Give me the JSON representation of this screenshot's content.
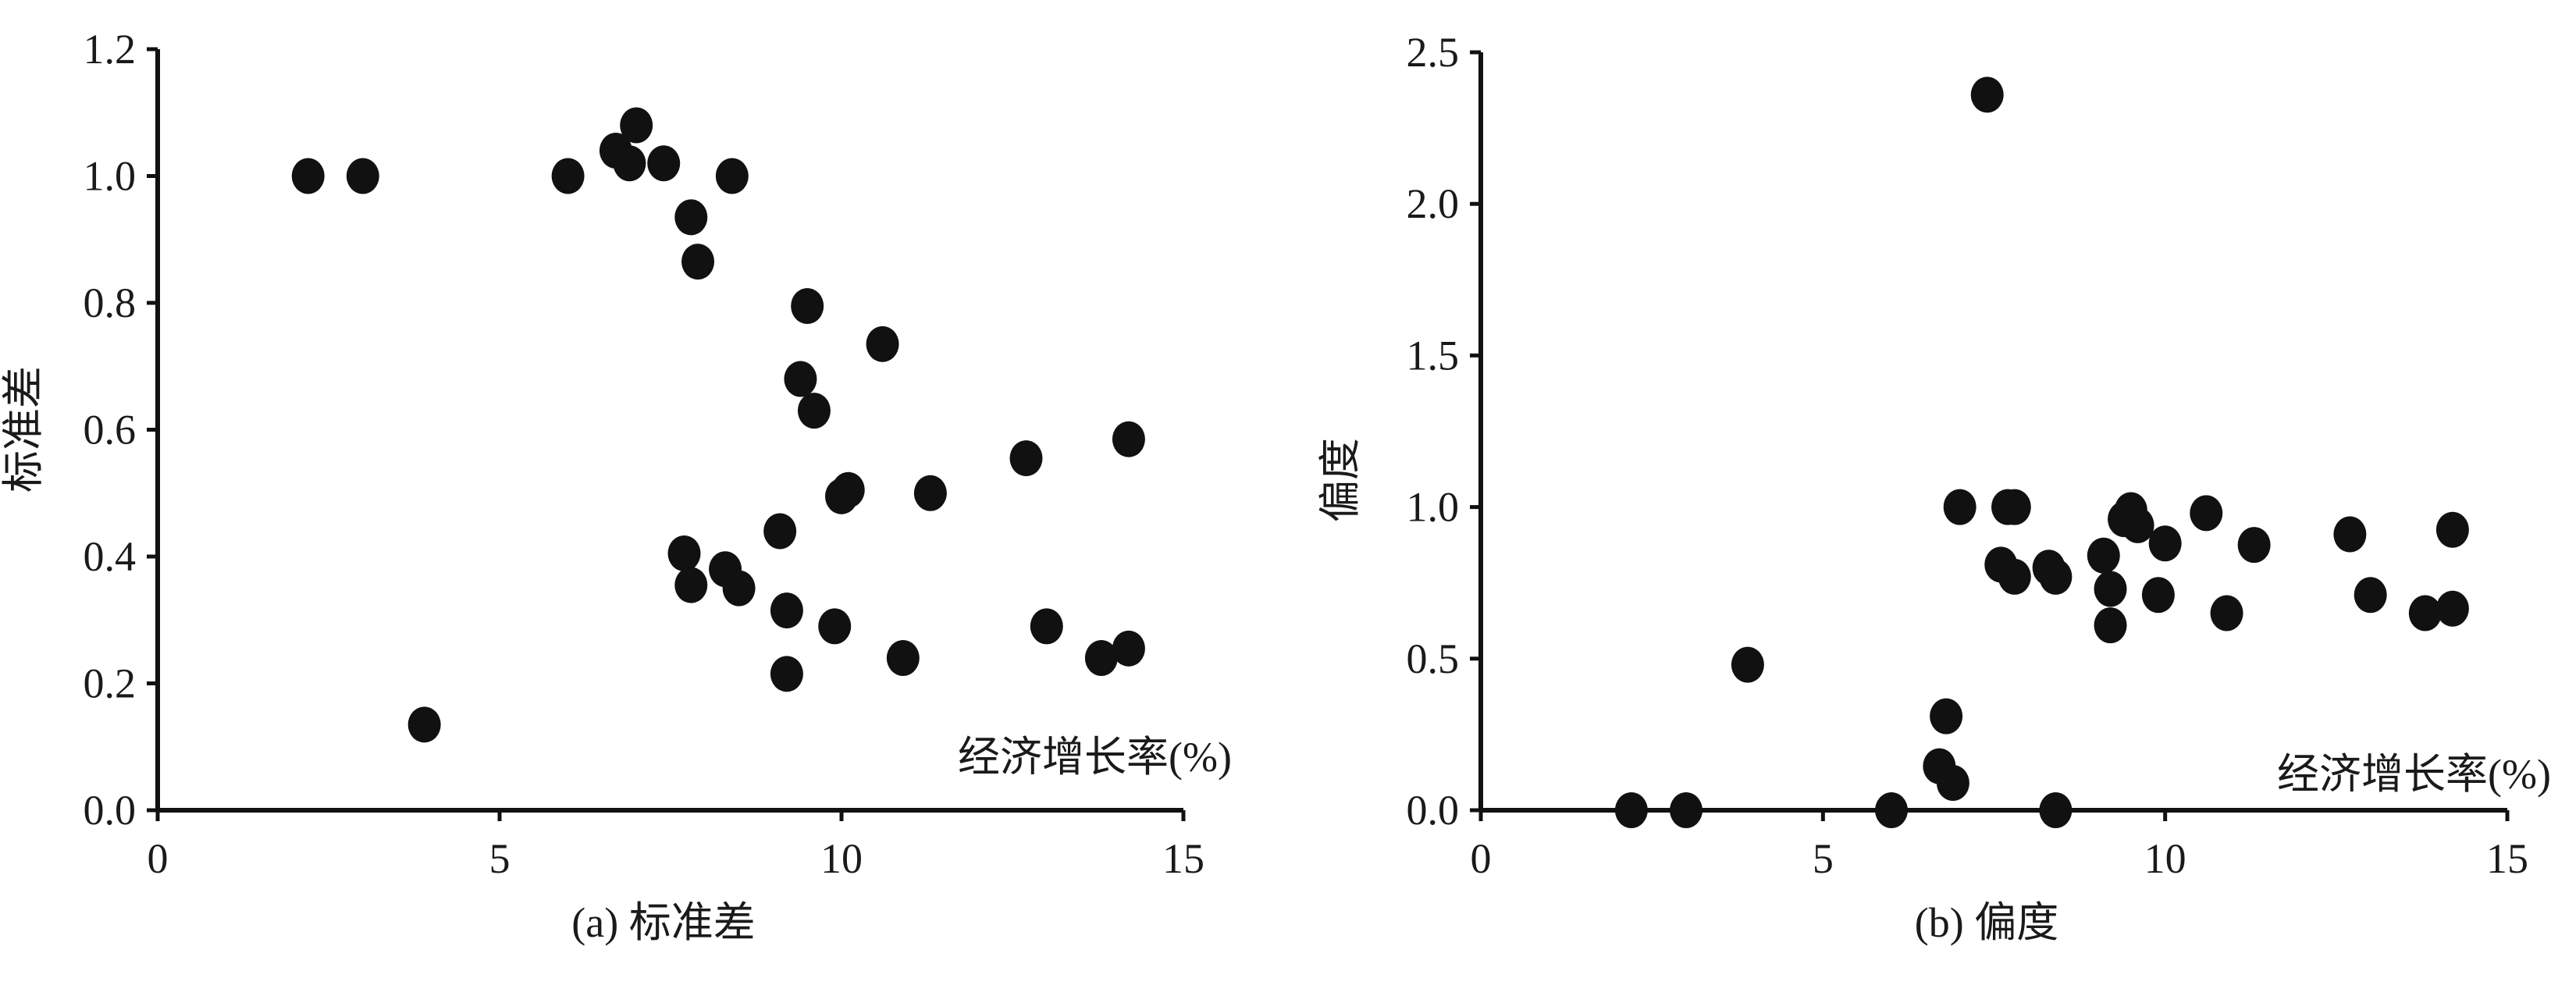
{
  "chart_data": [
    {
      "type": "scatter",
      "title": "(a) 标准差",
      "xlabel": "经济增长率(%)",
      "ylabel": "标准差",
      "xlim": [
        0,
        15
      ],
      "ylim": [
        0,
        1.2
      ],
      "xticks": [
        "0",
        "5",
        "10",
        "15"
      ],
      "yticks": [
        "0.0",
        "0.2",
        "0.4",
        "0.6",
        "0.8",
        "1.0",
        "1.2"
      ],
      "grid": false,
      "marker_color": "#111111",
      "points": [
        [
          2.2,
          1.0
        ],
        [
          3.0,
          1.0
        ],
        [
          3.9,
          0.135
        ],
        [
          6.0,
          1.0
        ],
        [
          6.7,
          1.04
        ],
        [
          6.9,
          1.02
        ],
        [
          7.0,
          1.08
        ],
        [
          7.4,
          1.02
        ],
        [
          8.4,
          1.0
        ],
        [
          7.8,
          0.935
        ],
        [
          7.9,
          0.865
        ],
        [
          9.5,
          0.795
        ],
        [
          10.6,
          0.735
        ],
        [
          9.4,
          0.68
        ],
        [
          9.6,
          0.63
        ],
        [
          12.7,
          0.555
        ],
        [
          14.2,
          0.585
        ],
        [
          10.0,
          0.495
        ],
        [
          10.1,
          0.505
        ],
        [
          11.3,
          0.5
        ],
        [
          9.1,
          0.44
        ],
        [
          7.7,
          0.405
        ],
        [
          8.3,
          0.38
        ],
        [
          7.8,
          0.355
        ],
        [
          8.5,
          0.35
        ],
        [
          9.2,
          0.315
        ],
        [
          9.9,
          0.29
        ],
        [
          13.0,
          0.29
        ],
        [
          10.9,
          0.24
        ],
        [
          13.8,
          0.24
        ],
        [
          14.2,
          0.255
        ],
        [
          9.2,
          0.215
        ]
      ]
    },
    {
      "type": "scatter",
      "title": "(b) 偏度",
      "xlabel": "经济增长率(%)",
      "ylabel": "偏度",
      "xlim": [
        0,
        15
      ],
      "ylim": [
        0,
        2.5
      ],
      "xticks": [
        "0",
        "5",
        "10",
        "15"
      ],
      "yticks": [
        "0.0",
        "0.5",
        "1.0",
        "1.5",
        "2.0",
        "2.5"
      ],
      "grid": false,
      "marker_color": "#111111",
      "points": [
        [
          7.4,
          2.36
        ],
        [
          7.0,
          1.0
        ],
        [
          7.7,
          1.0
        ],
        [
          7.8,
          1.0
        ],
        [
          9.4,
          0.96
        ],
        [
          9.5,
          0.99
        ],
        [
          9.6,
          0.94
        ],
        [
          10.6,
          0.98
        ],
        [
          10.0,
          0.88
        ],
        [
          9.1,
          0.84
        ],
        [
          11.3,
          0.875
        ],
        [
          12.7,
          0.91
        ],
        [
          14.2,
          0.925
        ],
        [
          7.6,
          0.81
        ],
        [
          7.8,
          0.77
        ],
        [
          8.3,
          0.8
        ],
        [
          8.4,
          0.77
        ],
        [
          9.2,
          0.73
        ],
        [
          9.9,
          0.71
        ],
        [
          13.0,
          0.71
        ],
        [
          10.9,
          0.65
        ],
        [
          13.8,
          0.65
        ],
        [
          14.2,
          0.665
        ],
        [
          9.2,
          0.61
        ],
        [
          3.9,
          0.48
        ],
        [
          6.8,
          0.31
        ],
        [
          6.7,
          0.145
        ],
        [
          6.9,
          0.09
        ],
        [
          2.2,
          0.0
        ],
        [
          3.0,
          0.0
        ],
        [
          6.0,
          0.0
        ],
        [
          8.4,
          0.0
        ]
      ]
    }
  ]
}
